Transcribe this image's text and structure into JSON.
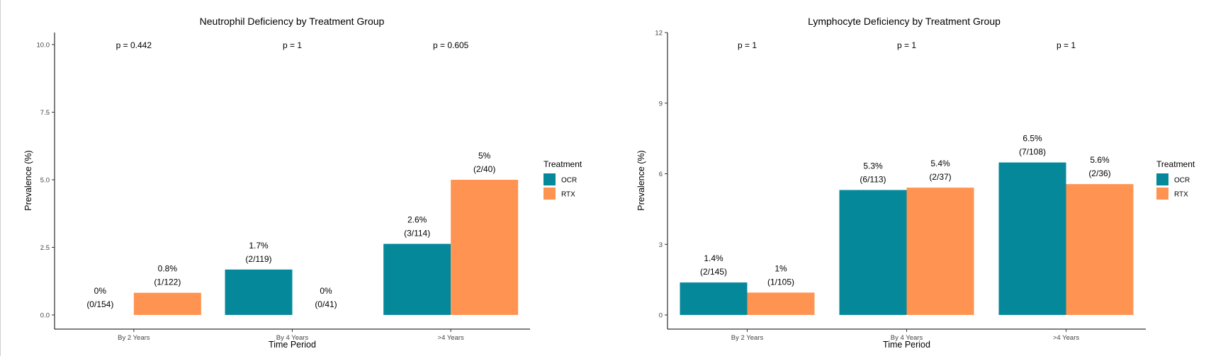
{
  "colors": {
    "OCR": "#06889b",
    "RTX": "#ff9351"
  },
  "chart_data": [
    {
      "type": "bar",
      "title": "Neutrophil Deficiency by Treatment Group",
      "xlabel": "Time Period",
      "ylabel": "Prevalence (%)",
      "ylim": [
        0,
        10
      ],
      "yticks": [
        0,
        2.5,
        5,
        7.5,
        10
      ],
      "ytick_labels": [
        "0.0",
        "2.5",
        "5.0",
        "7.5",
        "10.0"
      ],
      "categories": [
        "By 2 Years",
        "By 4 Years",
        ">4 Years"
      ],
      "series": [
        {
          "name": "OCR",
          "values": [
            0,
            1.68,
            2.63
          ],
          "labels": [
            [
              "0%",
              "(0/154)"
            ],
            [
              "1.7%",
              "(2/119)"
            ],
            [
              "2.6%",
              "(3/114)"
            ]
          ]
        },
        {
          "name": "RTX",
          "values": [
            0.82,
            0,
            5.0
          ],
          "labels": [
            [
              "0.8%",
              "(1/122)"
            ],
            [
              "0%",
              "(0/41)"
            ],
            [
              "5%",
              "(2/40)"
            ]
          ]
        }
      ],
      "p_values": [
        "p = 0.442",
        "p = 1",
        "p = 0.605"
      ],
      "legend": {
        "title": "Treatment",
        "entries": [
          "OCR",
          "RTX"
        ],
        "position": "right"
      }
    },
    {
      "type": "bar",
      "title": "Lymphocyte Deficiency by Treatment Group",
      "xlabel": "Time Period",
      "ylabel": "Prevalence (%)",
      "ylim": [
        0,
        12
      ],
      "yticks": [
        0,
        3,
        6,
        9,
        12
      ],
      "ytick_labels": [
        "0",
        "3",
        "6",
        "9",
        "12"
      ],
      "categories": [
        "By 2 Years",
        "By 4 Years",
        ">4 Years"
      ],
      "series": [
        {
          "name": "OCR",
          "values": [
            1.38,
            5.31,
            6.48
          ],
          "labels": [
            [
              "1.4%",
              "(2/145)"
            ],
            [
              "5.3%",
              "(6/113)"
            ],
            [
              "6.5%",
              "(7/108)"
            ]
          ]
        },
        {
          "name": "RTX",
          "values": [
            0.95,
            5.41,
            5.56
          ],
          "labels": [
            [
              "1%",
              "(1/105)"
            ],
            [
              "5.4%",
              "(2/37)"
            ],
            [
              "5.6%",
              "(2/36)"
            ]
          ]
        }
      ],
      "p_values": [
        "p = 1",
        "p = 1",
        "p = 1"
      ],
      "legend": {
        "title": "Treatment",
        "entries": [
          "OCR",
          "RTX"
        ],
        "position": "right"
      }
    }
  ]
}
